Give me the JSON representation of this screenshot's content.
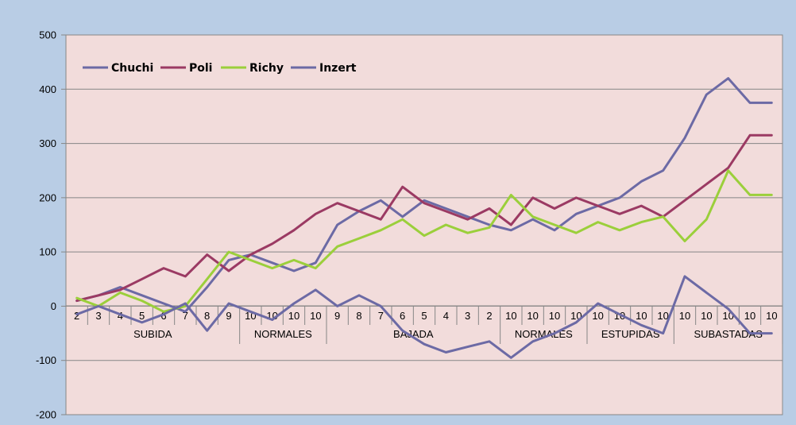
{
  "chart_data": {
    "type": "line",
    "title": "",
    "xlabel": "",
    "ylabel": "",
    "ylim": [
      -200,
      500
    ],
    "yticks": [
      -200,
      -100,
      0,
      100,
      200,
      300,
      400,
      500
    ],
    "grid": true,
    "legend_position": "top-left",
    "categories": [
      "2",
      "3",
      "4",
      "5",
      "6",
      "7",
      "8",
      "9",
      "10",
      "10",
      "10",
      "10",
      "9",
      "8",
      "7",
      "6",
      "5",
      "4",
      "3",
      "2",
      "10",
      "10",
      "10",
      "10",
      "10",
      "10",
      "10",
      "10",
      "10",
      "10",
      "10",
      "10",
      "10"
    ],
    "groups": [
      {
        "label": "SUBIDA",
        "count": 8
      },
      {
        "label": "NORMALES",
        "count": 4
      },
      {
        "label": "BAJADA",
        "count": 8
      },
      {
        "label": "NORMALES",
        "count": 4
      },
      {
        "label": "ESTUPIDAS",
        "count": 4
      },
      {
        "label": "SUBASTADAS",
        "count": 5
      }
    ],
    "series": [
      {
        "name": "Chuchi",
        "color": "#6c6aa5",
        "values": [
          10,
          20,
          35,
          20,
          5,
          -10,
          35,
          85,
          95,
          80,
          65,
          80,
          150,
          175,
          195,
          165,
          195,
          180,
          165,
          150,
          140,
          160,
          140,
          170,
          185,
          200,
          230,
          250,
          310,
          390,
          420,
          375,
          375
        ]
      },
      {
        "name": "Poli",
        "color": "#9b3a63",
        "values": [
          10,
          20,
          30,
          50,
          70,
          55,
          95,
          65,
          95,
          115,
          140,
          170,
          190,
          175,
          160,
          220,
          190,
          175,
          160,
          180,
          150,
          200,
          180,
          200,
          185,
          170,
          185,
          165,
          195,
          225,
          255,
          315,
          315
        ]
      },
      {
        "name": "Richy",
        "color": "#9bcf3b",
        "values": [
          15,
          0,
          25,
          10,
          -10,
          0,
          50,
          100,
          85,
          70,
          85,
          70,
          110,
          125,
          140,
          160,
          130,
          150,
          135,
          145,
          205,
          165,
          150,
          135,
          155,
          140,
          155,
          165,
          120,
          160,
          250,
          205,
          205
        ]
      },
      {
        "name": "Inzert",
        "color": "#6c6aa5",
        "values": [
          -15,
          0,
          -15,
          -30,
          -15,
          5,
          -45,
          5,
          -10,
          -25,
          5,
          30,
          0,
          20,
          0,
          -45,
          -70,
          -85,
          -75,
          -65,
          -95,
          -65,
          -50,
          -30,
          5,
          -15,
          -35,
          -50,
          55,
          25,
          -5,
          -50,
          -50
        ]
      }
    ]
  }
}
